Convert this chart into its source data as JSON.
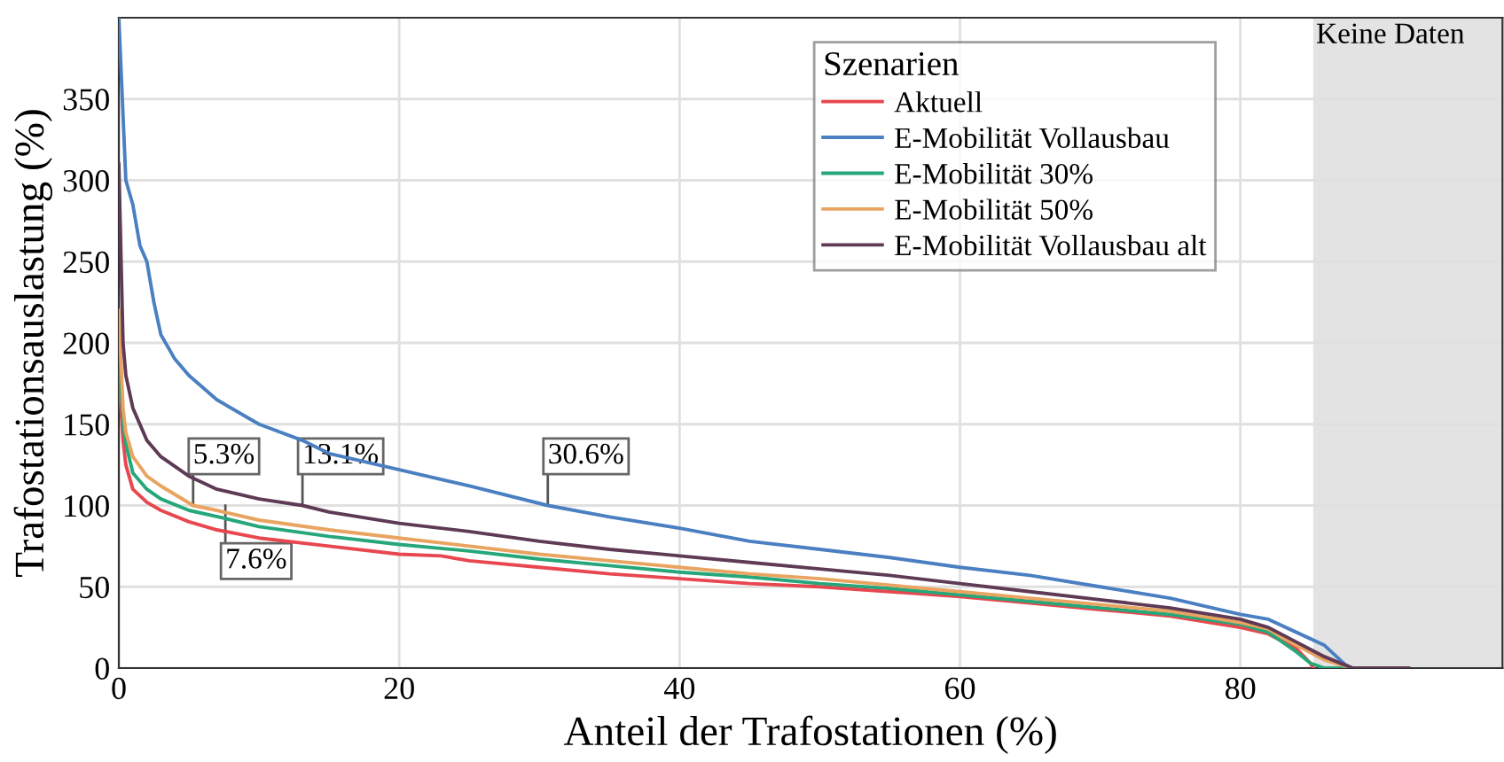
{
  "chart_data": {
    "type": "line",
    "xlabel": "Anteil der Trafostationen (%)",
    "ylabel": "Trafostationsauslastung (%)",
    "legend_title": "Szenarien",
    "xlim": [
      0,
      98.7
    ],
    "ylim": [
      0,
      400
    ],
    "xticks": [
      0,
      20,
      40,
      60,
      80
    ],
    "yticks": [
      0,
      50,
      100,
      150,
      200,
      250,
      300,
      350
    ],
    "grid": true,
    "legend": "top right",
    "series": [
      {
        "name": "Aktuell",
        "color": "#e8474f",
        "x": [
          0,
          0.3,
          0.5,
          1,
          2,
          3,
          5,
          7,
          10,
          15,
          20,
          23,
          25,
          30,
          35,
          40,
          45,
          50,
          55,
          60,
          65,
          70,
          75,
          80,
          82,
          84,
          85,
          85.2
        ],
        "values": [
          180,
          140,
          125,
          110,
          102,
          97,
          90,
          85,
          80,
          75,
          70,
          69,
          66,
          62,
          58,
          55,
          52,
          50,
          47,
          44,
          40,
          36,
          32,
          25,
          21,
          12,
          3,
          0
        ]
      },
      {
        "name": "E-Mobilität Vollausbau",
        "color": "#4a7fc1",
        "x": [
          0,
          0.3,
          0.5,
          1,
          1.5,
          2,
          2.5,
          3,
          4,
          5,
          7,
          10,
          13.1,
          15,
          20,
          25,
          30.6,
          35,
          40,
          45,
          50,
          55,
          60,
          65,
          70,
          75,
          80,
          82,
          84,
          86,
          87.5,
          88
        ],
        "values": [
          400,
          340,
          300,
          285,
          260,
          250,
          225,
          205,
          190,
          180,
          165,
          150,
          140,
          132,
          122,
          112,
          100,
          93,
          86,
          78,
          73,
          68,
          62,
          57,
          50,
          43,
          33,
          30,
          22,
          14,
          2,
          0
        ]
      },
      {
        "name": "E-Mobilität 30%",
        "color": "#26a77a",
        "x": [
          0,
          0.3,
          0.5,
          1,
          2,
          3,
          5,
          7.6,
          10,
          15,
          20,
          25,
          30,
          35,
          40,
          45,
          50,
          55,
          60,
          65,
          70,
          75,
          80,
          82,
          84,
          85,
          86,
          88
        ],
        "values": [
          200,
          150,
          138,
          120,
          110,
          104,
          97,
          92,
          87,
          81,
          76,
          72,
          67,
          63,
          59,
          56,
          52,
          49,
          45,
          41,
          37,
          33,
          27,
          22,
          10,
          3,
          0,
          0
        ]
      },
      {
        "name": "E-Mobilität 50%",
        "color": "#e8a460",
        "x": [
          0,
          0.3,
          0.5,
          1,
          2,
          3,
          5.3,
          7,
          10,
          15,
          20,
          25,
          30,
          35,
          40,
          45,
          50,
          55,
          60,
          65,
          70,
          75,
          80,
          82,
          84,
          86,
          88
        ],
        "values": [
          220,
          160,
          145,
          130,
          118,
          112,
          100,
          97,
          91,
          85,
          80,
          75,
          70,
          66,
          62,
          58,
          55,
          51,
          47,
          43,
          39,
          35,
          28,
          24,
          14,
          5,
          0
        ]
      },
      {
        "name": "E-Mobilität Vollausbau alt",
        "color": "#5e3a54",
        "x": [
          0,
          0.3,
          0.5,
          1,
          2,
          3,
          5,
          7,
          10,
          13.1,
          15,
          20,
          25,
          30,
          35,
          40,
          45,
          50,
          55,
          60,
          65,
          70,
          75,
          80,
          82,
          84,
          86,
          88,
          92
        ],
        "values": [
          310,
          200,
          180,
          160,
          140,
          130,
          118,
          110,
          104,
          100,
          96,
          89,
          84,
          78,
          73,
          69,
          65,
          61,
          57,
          52,
          47,
          42,
          37,
          30,
          25,
          16,
          7,
          0,
          0
        ]
      }
    ],
    "bands": [
      {
        "axis": "x",
        "from": 85.2,
        "to": 98.7,
        "label": "Keine Daten",
        "color": "#e3e3e3"
      }
    ],
    "annotations": [
      {
        "text": "5.3%",
        "x": 5.3,
        "y": 100
      },
      {
        "text": "13.1%",
        "x": 13.1,
        "y": 100
      },
      {
        "text": "30.6%",
        "x": 30.6,
        "y": 100
      },
      {
        "text": "7.6%",
        "x": 7.6,
        "y": 100
      }
    ]
  }
}
